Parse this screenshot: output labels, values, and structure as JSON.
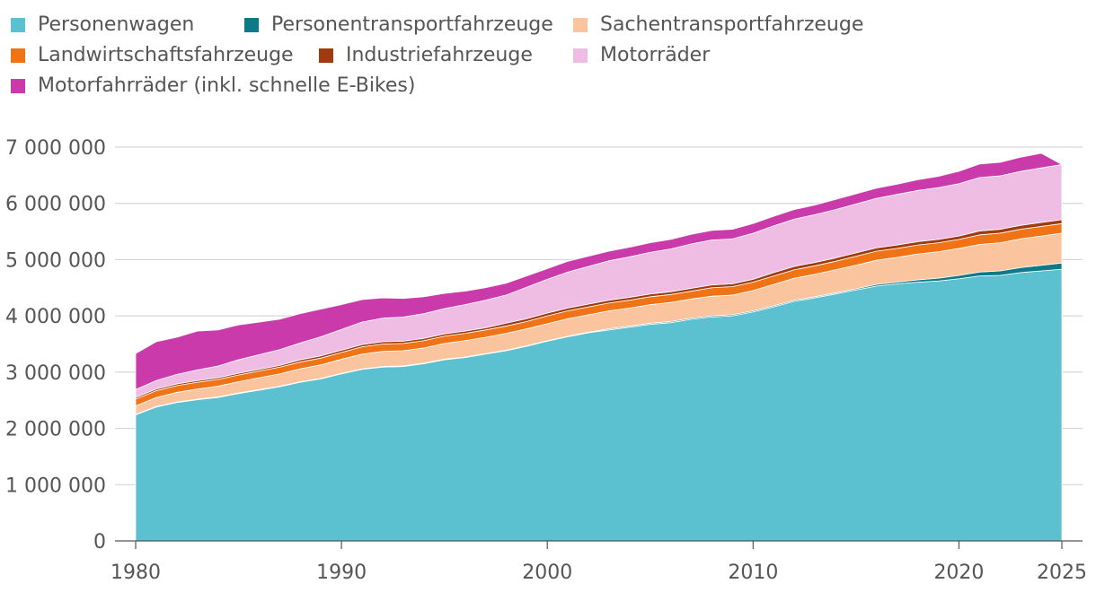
{
  "chart_data": {
    "type": "area",
    "stacked": true,
    "x": [
      1980,
      1981,
      1982,
      1983,
      1984,
      1985,
      1986,
      1987,
      1988,
      1989,
      1990,
      1991,
      1992,
      1993,
      1994,
      1995,
      1996,
      1997,
      1998,
      1999,
      2000,
      2001,
      2002,
      2003,
      2004,
      2005,
      2006,
      2007,
      2008,
      2009,
      2010,
      2011,
      2012,
      2013,
      2014,
      2015,
      2016,
      2017,
      2018,
      2019,
      2020,
      2021,
      2022,
      2023,
      2024,
      2025
    ],
    "xticks": [
      1980,
      1990,
      2000,
      2010,
      2020,
      2025
    ],
    "ylim": [
      0,
      7000000
    ],
    "yticks": [
      0,
      1000000,
      2000000,
      3000000,
      4000000,
      5000000,
      6000000,
      7000000
    ],
    "ytick_labels": [
      "0",
      "1 000 000",
      "2 000 000",
      "3 000 000",
      "4 000 000",
      "5 000 000",
      "6 000 000",
      "7 000 000"
    ],
    "xtick_labels": [
      "1980",
      "1990",
      "2000",
      "2010",
      "2020",
      "2025"
    ],
    "grid": "horizontal",
    "legend_position": "top-left",
    "series": [
      {
        "name": "Personenwagen",
        "color": "#5bc0cf",
        "values": [
          2240000,
          2380000,
          2460000,
          2510000,
          2550000,
          2620000,
          2680000,
          2740000,
          2820000,
          2880000,
          2970000,
          3050000,
          3090000,
          3100000,
          3150000,
          3220000,
          3260000,
          3320000,
          3380000,
          3460000,
          3550000,
          3630000,
          3700000,
          3750000,
          3800000,
          3850000,
          3880000,
          3940000,
          3980000,
          4000000,
          4070000,
          4160000,
          4260000,
          4320000,
          4390000,
          4460000,
          4530000,
          4570000,
          4600000,
          4620000,
          4660000,
          4710000,
          4720000,
          4770000,
          4800000,
          4830000
        ]
      },
      {
        "name": "Personentransportfahrzeuge",
        "color": "#0f7a87",
        "values": [
          10000,
          10000,
          10000,
          10000,
          10000,
          10000,
          10000,
          10000,
          10000,
          10000,
          10000,
          10000,
          10000,
          10000,
          10000,
          10000,
          10000,
          10000,
          10000,
          10000,
          10000,
          10000,
          10000,
          20000,
          20000,
          20000,
          20000,
          20000,
          20000,
          20000,
          20000,
          20000,
          20000,
          20000,
          20000,
          20000,
          30000,
          30000,
          40000,
          50000,
          60000,
          70000,
          80000,
          90000,
          100000,
          110000
        ]
      },
      {
        "name": "Sachentransportfahrzeuge",
        "color": "#f9c49e",
        "values": [
          150000,
          160000,
          170000,
          180000,
          190000,
          200000,
          210000,
          220000,
          230000,
          240000,
          250000,
          260000,
          270000,
          270000,
          270000,
          280000,
          290000,
          290000,
          300000,
          300000,
          300000,
          310000,
          310000,
          320000,
          320000,
          330000,
          340000,
          340000,
          350000,
          350000,
          360000,
          380000,
          390000,
          400000,
          410000,
          420000,
          430000,
          440000,
          460000,
          470000,
          480000,
          490000,
          500000,
          510000,
          520000,
          530000
        ]
      },
      {
        "name": "Landwirtschaftsfahrzeuge",
        "color": "#f07315",
        "values": [
          120000,
          120000,
          120000,
          120000,
          120000,
          120000,
          120000,
          120000,
          120000,
          120000,
          120000,
          130000,
          130000,
          130000,
          130000,
          130000,
          130000,
          130000,
          130000,
          130000,
          140000,
          140000,
          140000,
          140000,
          140000,
          140000,
          140000,
          140000,
          150000,
          150000,
          150000,
          150000,
          150000,
          150000,
          150000,
          160000,
          160000,
          160000,
          160000,
          160000,
          160000,
          170000,
          170000,
          170000,
          170000,
          170000
        ]
      },
      {
        "name": "Industriefahrzeuge",
        "color": "#9e3c0e",
        "values": [
          30000,
          30000,
          30000,
          30000,
          30000,
          30000,
          30000,
          30000,
          40000,
          40000,
          40000,
          40000,
          40000,
          40000,
          40000,
          40000,
          40000,
          40000,
          50000,
          50000,
          50000,
          50000,
          50000,
          50000,
          50000,
          50000,
          50000,
          50000,
          50000,
          50000,
          50000,
          60000,
          60000,
          60000,
          60000,
          60000,
          60000,
          60000,
          60000,
          60000,
          60000,
          70000,
          70000,
          70000,
          70000,
          70000
        ]
      },
      {
        "name": "Motorräder",
        "color": "#efbde4",
        "values": [
          140000,
          150000,
          170000,
          190000,
          210000,
          240000,
          260000,
          280000,
          300000,
          340000,
          370000,
          400000,
          420000,
          430000,
          440000,
          450000,
          470000,
          490000,
          500000,
          560000,
          600000,
          640000,
          670000,
          700000,
          720000,
          740000,
          760000,
          790000,
          800000,
          800000,
          820000,
          830000,
          840000,
          850000,
          860000,
          870000,
          880000,
          900000,
          910000,
          920000,
          930000,
          950000,
          950000,
          960000,
          970000,
          980000
        ]
      },
      {
        "name": "Motorfahrräder (inkl. schnelle E-Bikes)",
        "color": "#cb3aaa",
        "values": [
          640000,
          690000,
          660000,
          690000,
          640000,
          620000,
          580000,
          540000,
          520000,
          490000,
          440000,
          400000,
          360000,
          330000,
          300000,
          270000,
          240000,
          220000,
          210000,
          200000,
          190000,
          190000,
          180000,
          170000,
          170000,
          170000,
          170000,
          170000,
          170000,
          170000,
          170000,
          170000,
          170000,
          170000,
          180000,
          180000,
          180000,
          180000,
          190000,
          200000,
          220000,
          240000,
          240000,
          250000,
          260000,
          0
        ]
      }
    ]
  },
  "legend": {
    "items": [
      {
        "label": "Personenwagen",
        "color": "#5bc0cf"
      },
      {
        "label": "Personentransportfahrzeuge",
        "color": "#0f7a87"
      },
      {
        "label": "Sachentransportfahrzeuge",
        "color": "#f9c49e"
      },
      {
        "label": "Landwirtschaftsfahrzeuge",
        "color": "#f07315"
      },
      {
        "label": "Industriefahrzeuge",
        "color": "#9e3c0e"
      },
      {
        "label": "Motorräder",
        "color": "#efbde4"
      },
      {
        "label": "Motorfahrräder (inkl. schnelle E-Bikes)",
        "color": "#cb3aaa"
      }
    ]
  }
}
